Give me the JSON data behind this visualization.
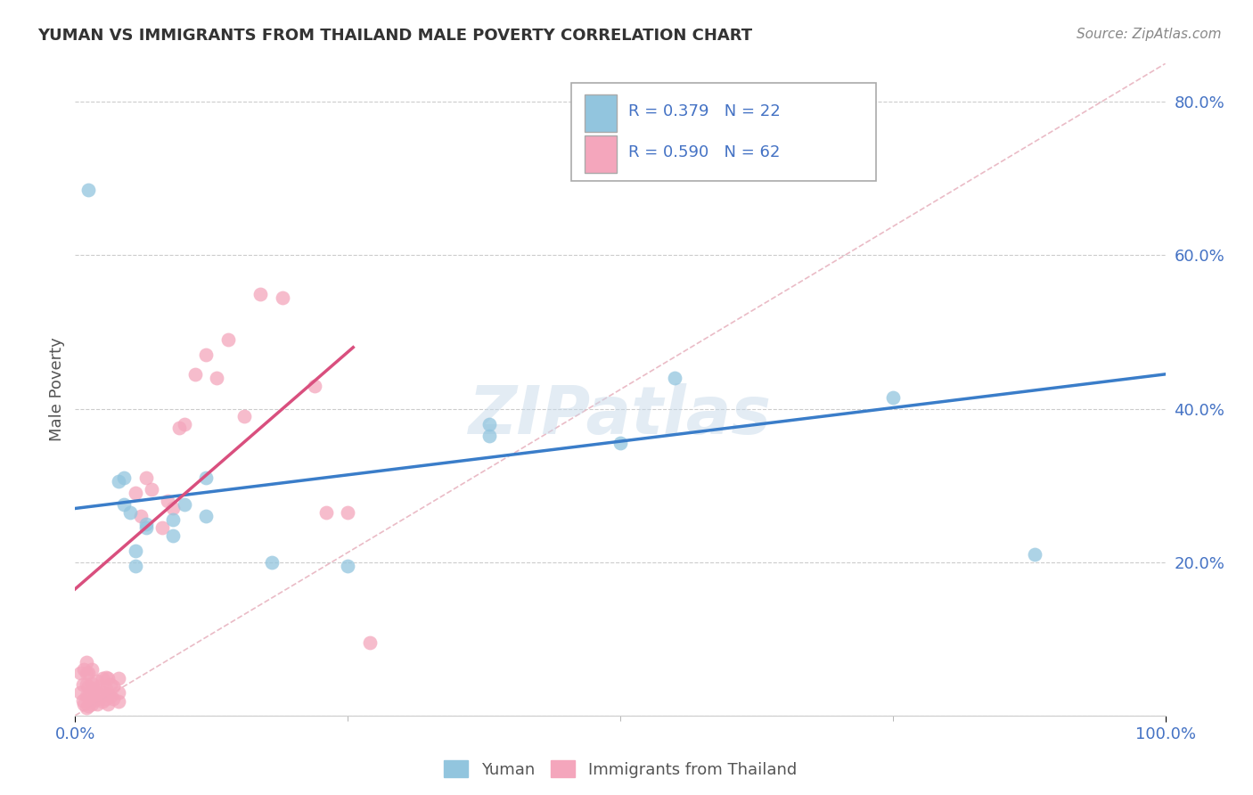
{
  "title": "YUMAN VS IMMIGRANTS FROM THAILAND MALE POVERTY CORRELATION CHART",
  "source": "Source: ZipAtlas.com",
  "ylabel": "Male Poverty",
  "xlim": [
    0,
    1.0
  ],
  "ylim": [
    0,
    0.85
  ],
  "ytick_vals": [
    0.0,
    0.2,
    0.4,
    0.6,
    0.8
  ],
  "ytick_labels": [
    "",
    "20.0%",
    "40.0%",
    "60.0%",
    "80.0%"
  ],
  "xtick_vals": [
    0.0,
    1.0
  ],
  "xtick_labels": [
    "0.0%",
    "100.0%"
  ],
  "legend_blue_text": "R = 0.379   N = 22",
  "legend_pink_text": "R = 0.590   N = 62",
  "legend_label_blue": "Yuman",
  "legend_label_pink": "Immigrants from Thailand",
  "blue_color": "#92c5de",
  "pink_color": "#f4a6bc",
  "blue_line_color": "#3a7dc9",
  "pink_line_color": "#d94f7e",
  "diag_color": "#e8b4c0",
  "watermark": "ZIPatlas",
  "blue_scatter_x": [
    0.012,
    0.04,
    0.045,
    0.045,
    0.05,
    0.055,
    0.055,
    0.065,
    0.065,
    0.09,
    0.09,
    0.1,
    0.12,
    0.12,
    0.18,
    0.25,
    0.38,
    0.38,
    0.5,
    0.55,
    0.75,
    0.88
  ],
  "blue_scatter_y": [
    0.685,
    0.305,
    0.31,
    0.275,
    0.265,
    0.215,
    0.195,
    0.25,
    0.245,
    0.255,
    0.235,
    0.275,
    0.31,
    0.26,
    0.2,
    0.195,
    0.365,
    0.38,
    0.355,
    0.44,
    0.415,
    0.21
  ],
  "pink_scatter_x": [
    0.005,
    0.005,
    0.007,
    0.007,
    0.008,
    0.008,
    0.01,
    0.01,
    0.01,
    0.01,
    0.01,
    0.012,
    0.012,
    0.012,
    0.012,
    0.015,
    0.015,
    0.015,
    0.015,
    0.017,
    0.017,
    0.02,
    0.02,
    0.02,
    0.022,
    0.022,
    0.025,
    0.025,
    0.025,
    0.028,
    0.028,
    0.028,
    0.03,
    0.03,
    0.03,
    0.032,
    0.032,
    0.035,
    0.035,
    0.04,
    0.04,
    0.04,
    0.055,
    0.06,
    0.065,
    0.07,
    0.08,
    0.085,
    0.09,
    0.095,
    0.1,
    0.11,
    0.12,
    0.13,
    0.14,
    0.155,
    0.17,
    0.19,
    0.22,
    0.23,
    0.25,
    0.27
  ],
  "pink_scatter_y": [
    0.03,
    0.055,
    0.02,
    0.04,
    0.015,
    0.06,
    0.01,
    0.025,
    0.04,
    0.055,
    0.07,
    0.012,
    0.025,
    0.038,
    0.055,
    0.015,
    0.028,
    0.042,
    0.06,
    0.02,
    0.035,
    0.015,
    0.03,
    0.045,
    0.022,
    0.038,
    0.018,
    0.03,
    0.048,
    0.022,
    0.035,
    0.05,
    0.015,
    0.028,
    0.048,
    0.025,
    0.04,
    0.022,
    0.038,
    0.018,
    0.03,
    0.048,
    0.29,
    0.26,
    0.31,
    0.295,
    0.245,
    0.28,
    0.27,
    0.375,
    0.38,
    0.445,
    0.47,
    0.44,
    0.49,
    0.39,
    0.55,
    0.545,
    0.43,
    0.265,
    0.265,
    0.095
  ],
  "blue_line_x": [
    0.0,
    1.0
  ],
  "blue_line_y": [
    0.27,
    0.445
  ],
  "pink_line_x": [
    0.0,
    0.255
  ],
  "pink_line_y": [
    0.165,
    0.48
  ],
  "diag_line_x": [
    0.0,
    1.0
  ],
  "diag_line_y": [
    0.0,
    0.85
  ]
}
